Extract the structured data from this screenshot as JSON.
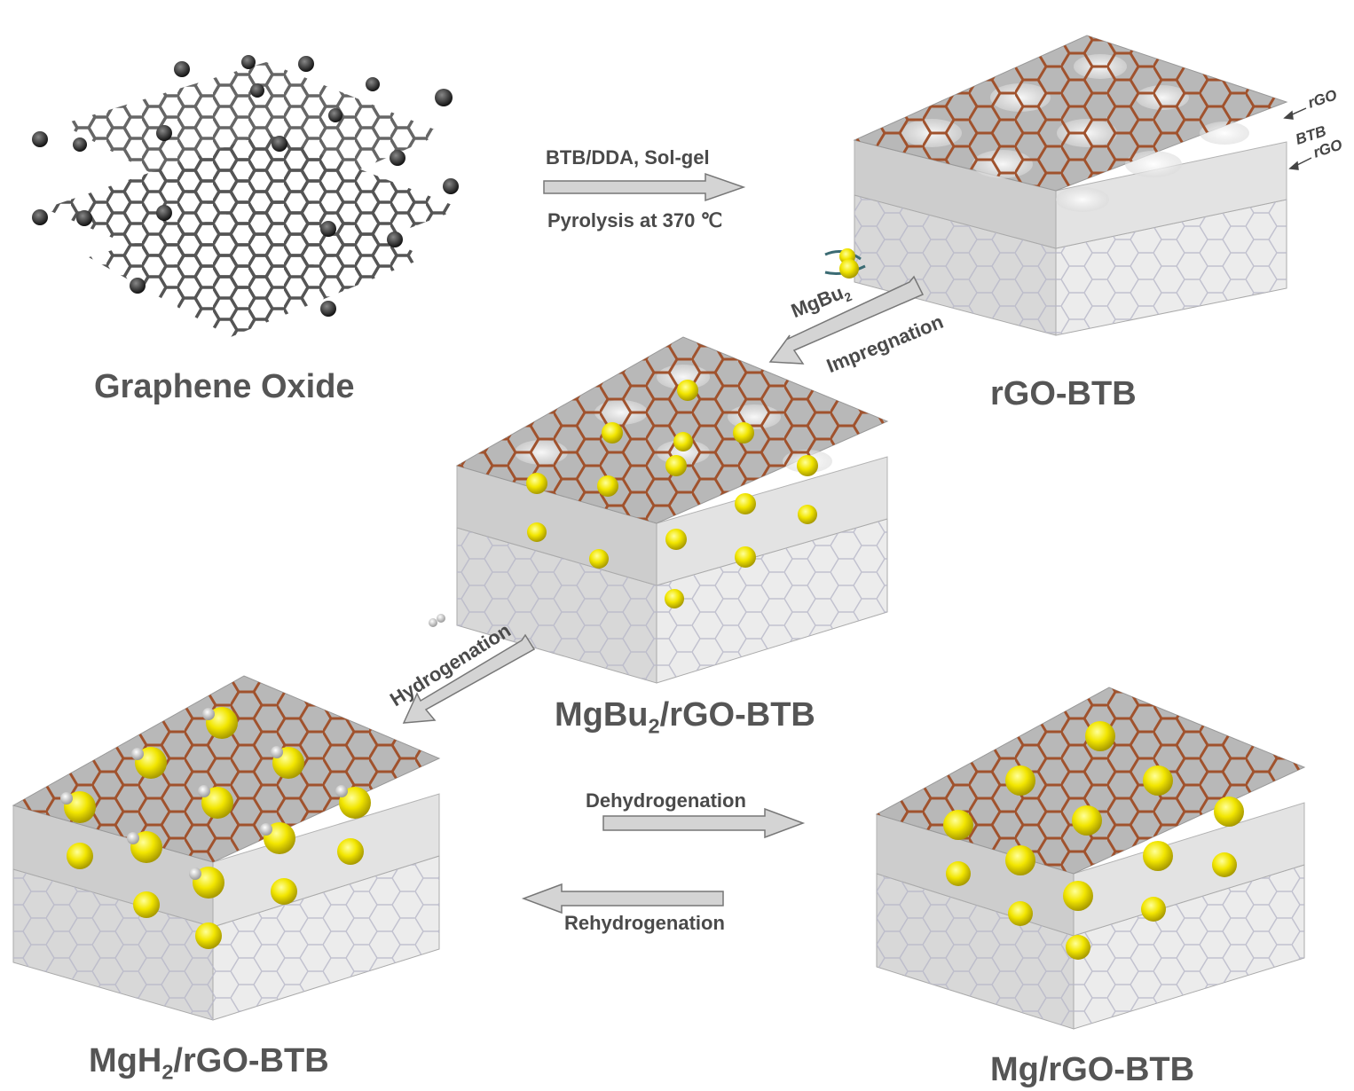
{
  "labels": {
    "graphene_oxide": "Graphene Oxide",
    "rgo_btb": "rGO-BTB",
    "mgbu2_rgo_btb_a": "MgBu",
    "mgbu2_rgo_btb_sub": "2",
    "mgbu2_rgo_btb_b": "/rGO-BTB",
    "mgh2_rgo_btb_a": "MgH",
    "mgh2_rgo_btb_sub": "2",
    "mgh2_rgo_btb_b": "/rGO-BTB",
    "mg_rgo_btb": "Mg/rGO-BTB"
  },
  "layer_labels": {
    "top": "rGO",
    "middle": "BTB",
    "bottom": "rGO"
  },
  "steps": {
    "step1_top": "BTB/DDA, Sol-gel",
    "step1_bottom": "Pyrolysis at 370 ℃",
    "step2_reagent_a": "MgBu",
    "step2_reagent_sub": "2",
    "step2_label": "Impregnation",
    "step3_label": "Hydrogenation",
    "step4_label": "Dehydrogenation",
    "step5_label": "Rehydrogenation"
  },
  "colors": {
    "frame": "#a0522d",
    "particle": "#f2e600",
    "box_face": "#cfcfcf",
    "arrow_fill": "#d4d4d4",
    "arrow_stroke": "#777777",
    "graphene": "#555555"
  }
}
